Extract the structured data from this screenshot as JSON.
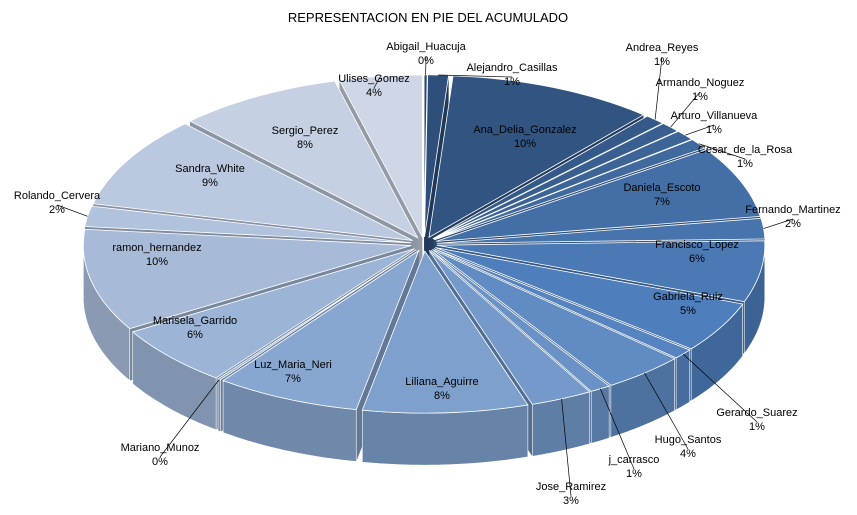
{
  "chart_data": {
    "type": "pie",
    "title": "REPRESENTACION EN PIE DEL ACUMULADO",
    "unit": "%",
    "slices": [
      {
        "name": "Abigail_Huacuja",
        "value": 0,
        "label": "0%"
      },
      {
        "name": "Alejandro_Casillas",
        "value": 1,
        "label": "1%"
      },
      {
        "name": "Ana_Delia_Gonzalez",
        "value": 10,
        "label": "10%"
      },
      {
        "name": "Andrea_Reyes",
        "value": 1,
        "label": "1%"
      },
      {
        "name": "Armando_Noguez",
        "value": 1,
        "label": "1%"
      },
      {
        "name": "Arturo_Villanueva",
        "value": 1,
        "label": "1%"
      },
      {
        "name": "Cesar_de_la_Rosa",
        "value": 1,
        "label": "1%"
      },
      {
        "name": "Daniela_Escoto",
        "value": 7,
        "label": "7%"
      },
      {
        "name": "Fernando_Martinez",
        "value": 2,
        "label": "2%"
      },
      {
        "name": "Francisco_Lopez",
        "value": 6,
        "label": "6%"
      },
      {
        "name": "Gabriela_Ruiz",
        "value": 5,
        "label": "5%"
      },
      {
        "name": "Gerardo_Suarez",
        "value": 1,
        "label": "1%"
      },
      {
        "name": "Hugo_Santos",
        "value": 4,
        "label": "4%"
      },
      {
        "name": "j_carrasco",
        "value": 1,
        "label": "1%"
      },
      {
        "name": "Jose_Ramirez",
        "value": 3,
        "label": "3%"
      },
      {
        "name": "Liliana_Aguirre",
        "value": 8,
        "label": "8%"
      },
      {
        "name": "Luz_Maria_Neri",
        "value": 7,
        "label": "7%"
      },
      {
        "name": "Mariano_Munoz",
        "value": 0,
        "label": "0%"
      },
      {
        "name": "Marisela_Garrido",
        "value": 6,
        "label": "6%"
      },
      {
        "name": "ramon_hernandez",
        "value": 10,
        "label": "10%"
      },
      {
        "name": "Rolando_Cervera",
        "value": 2,
        "label": "2%"
      },
      {
        "name": "Sandra_White",
        "value": 9,
        "label": "9%"
      },
      {
        "name": "Sergio_Perez",
        "value": 8,
        "label": "8%"
      },
      {
        "name": "Ulises_Gomez",
        "value": 4,
        "label": "4%"
      }
    ],
    "colors": {
      "dark": "#2b4a73",
      "mid": "#4f80be",
      "light": "#cfd7e6"
    },
    "style": "3d-exploded"
  }
}
